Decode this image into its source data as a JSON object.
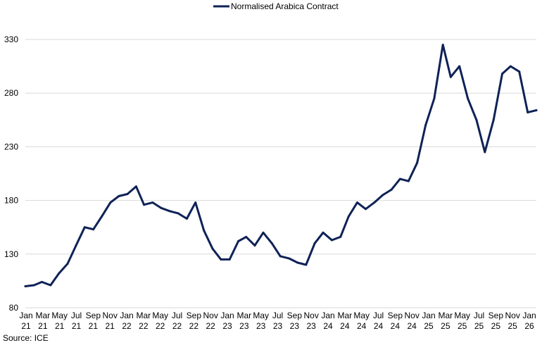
{
  "chart_data": {
    "type": "line",
    "title": "",
    "xlabel": "",
    "ylabel": "",
    "ylim": [
      80,
      330
    ],
    "y_ticks": [
      80,
      130,
      180,
      230,
      280,
      330
    ],
    "grid": "horizontal",
    "legend_position": "top-center",
    "series": [
      {
        "name": "Normalised Arabica Contract",
        "color": "#0f2257",
        "x": [
          "2021-01-01",
          "2021-02-01",
          "2021-03-01",
          "2021-04-01",
          "2021-05-01",
          "2021-06-01",
          "2021-07-01",
          "2021-08-01",
          "2021-09-01",
          "2021-10-01",
          "2021-11-01",
          "2021-12-01",
          "2022-01-01",
          "2022-02-01",
          "2022-03-01",
          "2022-04-01",
          "2022-05-01",
          "2022-06-01",
          "2022-07-01",
          "2022-08-01",
          "2022-09-01",
          "2022-10-01",
          "2022-11-01",
          "2022-12-01",
          "2023-01-01",
          "2023-02-01",
          "2023-03-01",
          "2023-04-01",
          "2023-05-01",
          "2023-06-01",
          "2023-07-01",
          "2023-08-01",
          "2023-09-01",
          "2023-10-01",
          "2023-11-01",
          "2023-12-01",
          "2024-01-01",
          "2024-02-01",
          "2024-03-01",
          "2024-04-01",
          "2024-05-01",
          "2024-06-01",
          "2024-07-01",
          "2024-08-01",
          "2024-09-01",
          "2024-10-01",
          "2024-11-01",
          "2024-12-01",
          "2025-01-01",
          "2025-02-01",
          "2025-03-01",
          "2025-04-01",
          "2025-05-01",
          "2025-06-01",
          "2025-07-01",
          "2025-08-01",
          "2025-09-01",
          "2025-10-01",
          "2025-11-01",
          "2025-12-01",
          "2026-01-01"
        ],
        "values": [
          100,
          101,
          104,
          101,
          112,
          121,
          138,
          155,
          153,
          165,
          178,
          184,
          186,
          193,
          176,
          178,
          173,
          170,
          168,
          163,
          178,
          152,
          135,
          125,
          125,
          142,
          146,
          138,
          150,
          140,
          128,
          126,
          122,
          120,
          140,
          150,
          143,
          146,
          165,
          178,
          172,
          178,
          185,
          190,
          200,
          198,
          215,
          250,
          275,
          325,
          295,
          305,
          275,
          255,
          225,
          255,
          298,
          305,
          300,
          262,
          264
        ]
      }
    ]
  },
  "x_tick_labels": [
    {
      "month": "Jan",
      "year": "21"
    },
    {
      "month": "Mar",
      "year": "21"
    },
    {
      "month": "May",
      "year": "21"
    },
    {
      "month": "Jul",
      "year": "21"
    },
    {
      "month": "Sep",
      "year": "21"
    },
    {
      "month": "Nov",
      "year": "21"
    },
    {
      "month": "Jan",
      "year": "22"
    },
    {
      "month": "Mar",
      "year": "22"
    },
    {
      "month": "May",
      "year": "22"
    },
    {
      "month": "Jul",
      "year": "22"
    },
    {
      "month": "Sep",
      "year": "22"
    },
    {
      "month": "Nov",
      "year": "22"
    },
    {
      "month": "Jan",
      "year": "23"
    },
    {
      "month": "Mar",
      "year": "23"
    },
    {
      "month": "May",
      "year": "23"
    },
    {
      "month": "Jul",
      "year": "23"
    },
    {
      "month": "Sep",
      "year": "23"
    },
    {
      "month": "Nov",
      "year": "23"
    },
    {
      "month": "Jan",
      "year": "24"
    },
    {
      "month": "Mar",
      "year": "24"
    },
    {
      "month": "May",
      "year": "24"
    },
    {
      "month": "Jul",
      "year": "24"
    },
    {
      "month": "Sep",
      "year": "24"
    },
    {
      "month": "Nov",
      "year": "24"
    },
    {
      "month": "Jan",
      "year": "25"
    },
    {
      "month": "Mar",
      "year": "25"
    },
    {
      "month": "May",
      "year": "25"
    },
    {
      "month": "Jul",
      "year": "25"
    },
    {
      "month": "Sep",
      "year": "25"
    },
    {
      "month": "Nov",
      "year": "25"
    },
    {
      "month": "Jan",
      "year": "26"
    }
  ],
  "source": "Source: ICE"
}
